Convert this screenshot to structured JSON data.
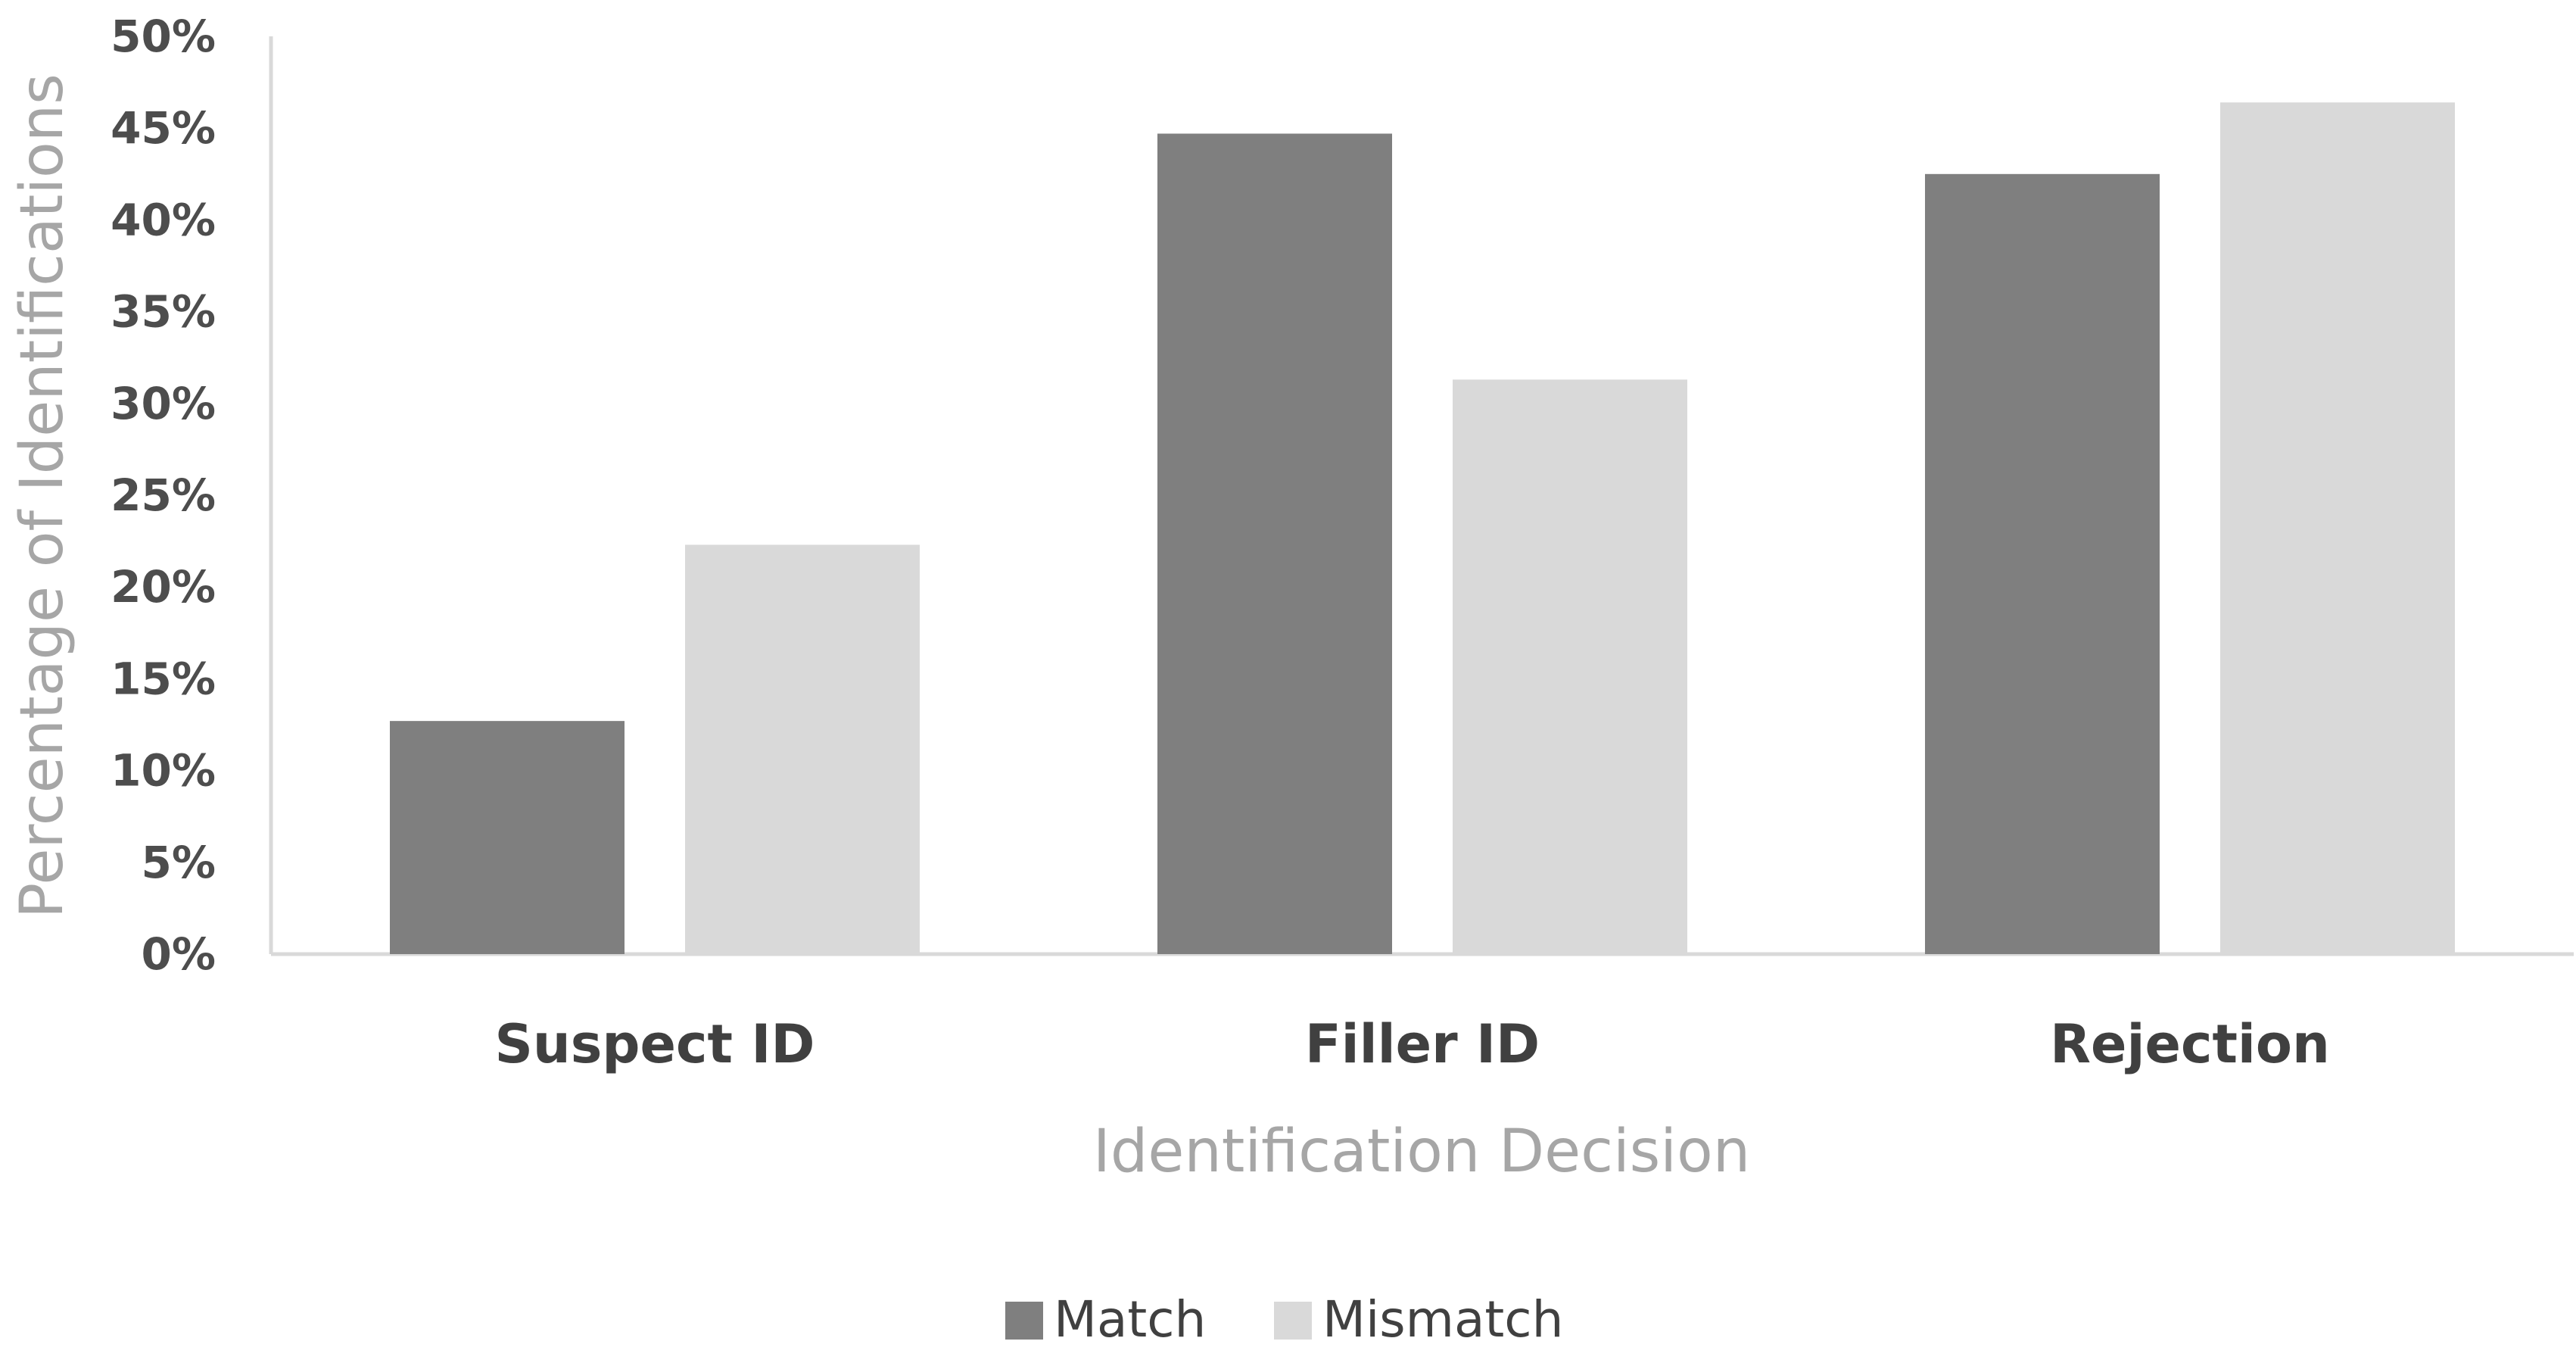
{
  "chart_data": {
    "type": "bar",
    "categories": [
      "Suspect ID",
      "Filler ID",
      "Rejection"
    ],
    "series": [
      {
        "name": "Match",
        "values": [
          12.7,
          44.7,
          42.5
        ],
        "color": "#7f7f7f"
      },
      {
        "name": "Mismatch",
        "values": [
          22.3,
          31.3,
          46.4
        ],
        "color": "#d9d9d9"
      }
    ],
    "xlabel": "Identification Decision",
    "ylabel": "Percentage of Identifications",
    "ylim": [
      0,
      50
    ],
    "yticks": [
      "0%",
      "5%",
      "10%",
      "15%",
      "20%",
      "25%",
      "30%",
      "35%",
      "40%",
      "45%",
      "50%"
    ],
    "grid": false,
    "legend_position": "bottom-center",
    "axis_color": "#d9d9d9"
  }
}
